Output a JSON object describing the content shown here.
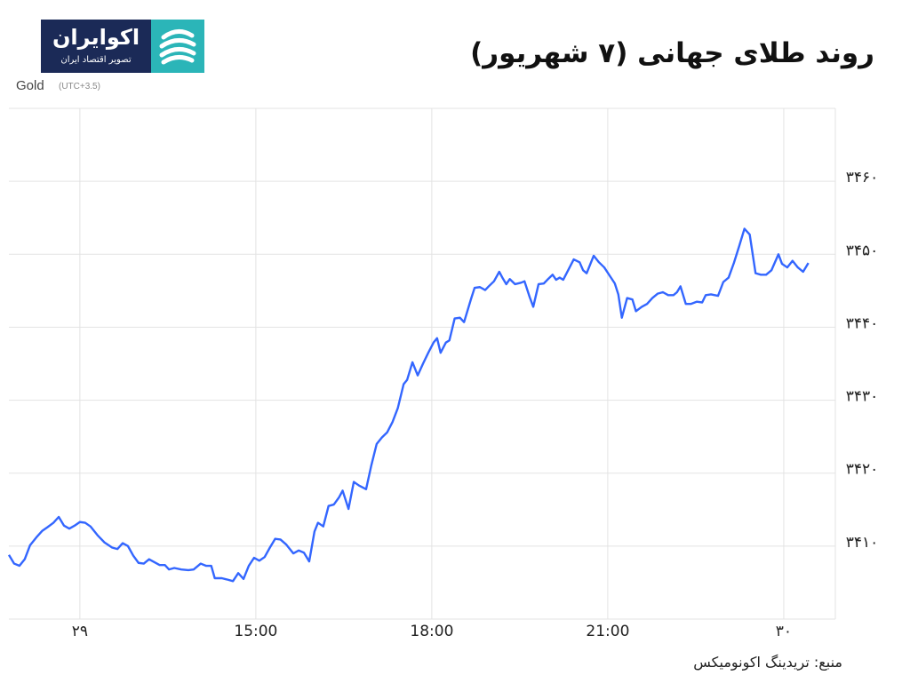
{
  "header": {
    "logo_name": "اکوایران",
    "logo_tagline": "تصویر اقتصاد ایران"
  },
  "chart_data": {
    "type": "line",
    "title": "روند طلای جهانی (۷ شهریور)",
    "timezone_note": "(UTC+3.5)",
    "source": "منبع: تریدینگ اکونومیکس",
    "x": [
      10.79,
      10.88,
      10.97,
      11.06,
      11.15,
      11.27,
      11.36,
      11.45,
      11.55,
      11.64,
      11.73,
      11.82,
      11.91,
      12.0,
      12.09,
      12.18,
      12.3,
      12.42,
      12.55,
      12.64,
      12.73,
      12.82,
      12.91,
      13.0,
      13.09,
      13.18,
      13.27,
      13.36,
      13.45,
      13.52,
      13.61,
      13.73,
      13.85,
      13.94,
      14.06,
      14.15,
      14.24,
      14.3,
      14.42,
      14.52,
      14.61,
      14.7,
      14.79,
      14.88,
      14.97,
      15.06,
      15.15,
      15.24,
      15.33,
      15.42,
      15.52,
      15.64,
      15.73,
      15.82,
      15.91,
      16.0,
      16.06,
      16.15,
      16.24,
      16.33,
      16.42,
      16.48,
      16.58,
      16.67,
      16.76,
      16.88,
      16.97,
      17.06,
      17.15,
      17.24,
      17.33,
      17.42,
      17.52,
      17.58,
      17.67,
      17.76,
      17.85,
      17.94,
      18.03,
      18.09,
      18.15,
      18.24,
      18.3,
      18.39,
      18.48,
      18.55,
      18.67,
      18.73,
      18.82,
      18.91,
      18.97,
      19.06,
      19.15,
      19.21,
      19.27,
      19.33,
      19.42,
      19.52,
      19.58,
      19.67,
      19.73,
      19.82,
      19.91,
      19.97,
      20.06,
      20.12,
      20.18,
      20.24,
      20.33,
      20.42,
      20.52,
      20.58,
      20.64,
      20.76,
      20.85,
      20.94,
      21.03,
      21.12,
      21.18,
      21.24,
      21.33,
      21.42,
      21.48,
      21.58,
      21.67,
      21.76,
      21.85,
      21.94,
      22.03,
      22.12,
      22.18,
      22.24,
      22.33,
      22.42,
      22.52,
      22.61,
      22.67,
      22.76,
      22.88,
      22.97,
      23.06,
      23.15,
      23.24,
      23.33,
      23.42,
      23.52,
      23.61,
      23.7,
      23.79,
      23.91,
      23.97,
      24.06,
      24.15,
      24.24,
      24.33,
      24.42
    ],
    "series": [
      {
        "name": "Gold",
        "color": "#3366ff",
        "values": [
          3408.8,
          3407.6,
          3407.3,
          3408.2,
          3410.1,
          3411.3,
          3412.1,
          3412.6,
          3413.2,
          3414.0,
          3412.8,
          3412.4,
          3412.8,
          3413.3,
          3413.2,
          3412.7,
          3411.5,
          3410.5,
          3409.8,
          3409.6,
          3410.4,
          3410.0,
          3408.7,
          3407.7,
          3407.6,
          3408.2,
          3407.8,
          3407.4,
          3407.4,
          3406.8,
          3407.0,
          3406.8,
          3406.7,
          3406.8,
          3407.6,
          3407.3,
          3407.3,
          3405.6,
          3405.6,
          3405.4,
          3405.2,
          3406.3,
          3405.5,
          3407.3,
          3408.4,
          3408.0,
          3408.5,
          3409.8,
          3411.0,
          3410.9,
          3410.2,
          3409.0,
          3409.4,
          3409.1,
          3407.9,
          3412.0,
          3413.2,
          3412.7,
          3415.5,
          3415.7,
          3416.7,
          3417.6,
          3415.1,
          3418.8,
          3418.3,
          3417.8,
          3421.1,
          3424.0,
          3424.9,
          3425.6,
          3427.0,
          3428.9,
          3432.2,
          3432.8,
          3435.2,
          3433.4,
          3435.0,
          3436.5,
          3437.9,
          3438.5,
          3436.5,
          3437.9,
          3438.2,
          3441.2,
          3441.3,
          3440.7,
          3443.9,
          3445.4,
          3445.5,
          3445.1,
          3445.6,
          3446.3,
          3447.6,
          3446.7,
          3445.9,
          3446.6,
          3445.9,
          3446.1,
          3446.3,
          3444.1,
          3442.8,
          3445.9,
          3446.0,
          3446.5,
          3447.2,
          3446.5,
          3446.8,
          3446.5,
          3447.9,
          3449.3,
          3448.9,
          3447.8,
          3447.4,
          3449.8,
          3448.9,
          3448.2,
          3447.1,
          3446.0,
          3444.5,
          3441.3,
          3444.0,
          3443.8,
          3442.2,
          3442.8,
          3443.2,
          3444.0,
          3444.6,
          3444.8,
          3444.4,
          3444.4,
          3444.8,
          3445.6,
          3443.2,
          3443.2,
          3443.5,
          3443.4,
          3444.4,
          3444.5,
          3444.3,
          3446.2,
          3446.8,
          3448.8,
          3451.1,
          3453.5,
          3452.7,
          3447.4,
          3447.2,
          3447.2,
          3447.8,
          3450.0,
          3448.7,
          3448.2,
          3449.1,
          3448.2,
          3447.6,
          3448.8
        ]
      }
    ],
    "xlim": [
      10.79,
      24.88
    ],
    "xticks": [
      {
        "value": 12,
        "label": "۲۹"
      },
      {
        "value": 15,
        "label": "15:00"
      },
      {
        "value": 18,
        "label": "18:00"
      },
      {
        "value": 21,
        "label": "21:00"
      },
      {
        "value": 24,
        "label": "۳۰"
      }
    ],
    "ylim": [
      3400,
      3470
    ],
    "yticks": [
      {
        "value": 3410,
        "label": "۳۴۱۰"
      },
      {
        "value": 3420,
        "label": "۳۴۲۰"
      },
      {
        "value": 3430,
        "label": "۳۴۳۰"
      },
      {
        "value": 3440,
        "label": "۳۴۴۰"
      },
      {
        "value": 3450,
        "label": "۳۴۵۰"
      },
      {
        "value": 3460,
        "label": "۳۴۶۰"
      }
    ],
    "grid": true
  }
}
